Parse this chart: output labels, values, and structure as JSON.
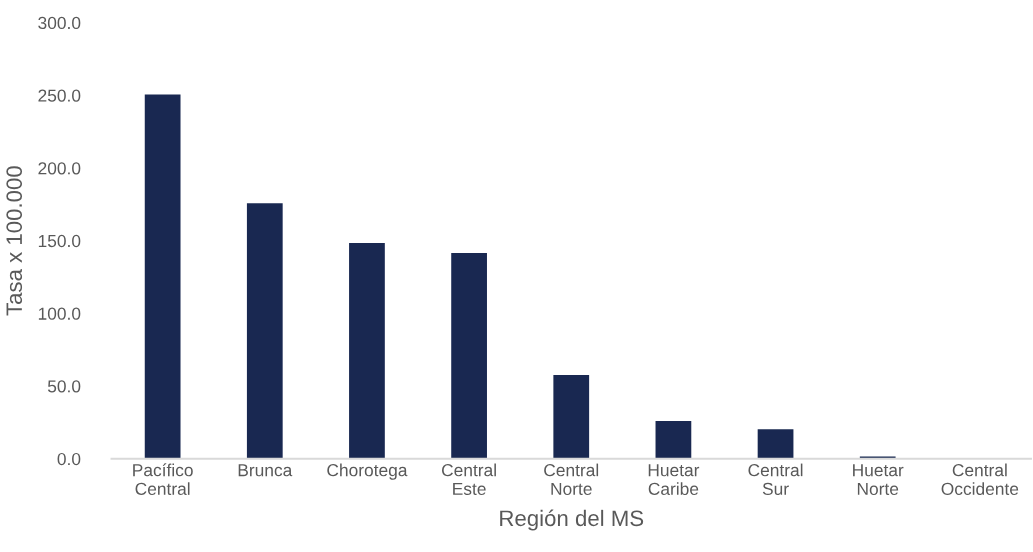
{
  "chart_data": {
    "type": "bar",
    "xlabel": "Región del MS",
    "ylabel": "Tasa x 100.000",
    "categories": [
      "Pacífico\nCentral",
      "Brunca",
      "Chorotega",
      "Central\nEste",
      "Central\nNorte",
      "Huetar\nCaribe",
      "Central\nSur",
      "Huetar\nNorte",
      "Central\nOccidente"
    ],
    "values": [
      250.5,
      175.7,
      148.4,
      141.5,
      57.6,
      26.0,
      20.2,
      1.6,
      0
    ],
    "color": "#192851",
    "ylim": [
      0,
      300
    ],
    "yticks": [
      {
        "value": 0,
        "label": "0.0"
      },
      {
        "value": 50,
        "label": "50.0"
      },
      {
        "value": 100,
        "label": "100.0"
      },
      {
        "value": 150,
        "label": "150.0"
      },
      {
        "value": 200,
        "label": "200.0"
      },
      {
        "value": 250,
        "label": "250.0"
      },
      {
        "value": 300,
        "label": "300.0"
      }
    ],
    "grid": false
  }
}
